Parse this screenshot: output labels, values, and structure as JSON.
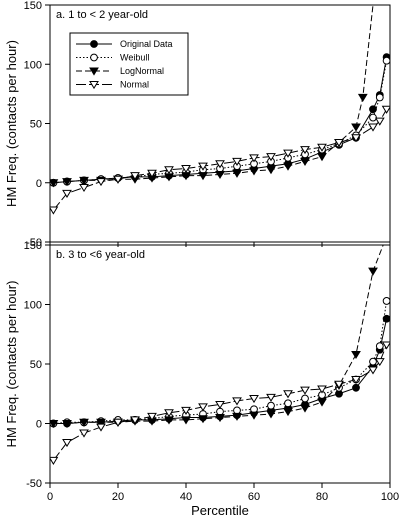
{
  "chart_data": {
    "type": "line",
    "xlabel": "Percentile",
    "ylabel": "HM Freq. (contacts per hour)",
    "xlim": [
      0,
      100
    ],
    "xticks": [
      0,
      20,
      40,
      60,
      80,
      100
    ],
    "ylim": [
      -50,
      150
    ],
    "yticks": [
      -50,
      0,
      50,
      100,
      150
    ],
    "grid": false,
    "legend_position": "top-left",
    "legend": [
      {
        "name": "Original Data",
        "line": "solid",
        "marker": "filled-circle"
      },
      {
        "name": "Weibull",
        "line": "dotted",
        "marker": "open-circle"
      },
      {
        "name": "LogNormal",
        "line": "dashed",
        "marker": "filled-down-triangle"
      },
      {
        "name": "Normal",
        "line": "long-dash",
        "marker": "open-down-triangle"
      }
    ],
    "panels": [
      {
        "label": "a. 1 to < 2 year-old",
        "series": [
          {
            "name": "Original Data",
            "x": [
              1,
              5,
              10,
              15,
              20,
              25,
              30,
              35,
              40,
              45,
              50,
              55,
              60,
              65,
              70,
              75,
              80,
              85,
              90,
              95,
              97,
              99
            ],
            "y": [
              0,
              1,
              2,
              3,
              4,
              5,
              5,
              6,
              7,
              8,
              9,
              10,
              12,
              14,
              16,
              20,
              26,
              32,
              38,
              62,
              74,
              106
            ]
          },
          {
            "name": "Weibull",
            "x": [
              1,
              5,
              10,
              15,
              20,
              25,
              30,
              35,
              40,
              45,
              50,
              55,
              60,
              65,
              70,
              75,
              80,
              85,
              90,
              95,
              97,
              99
            ],
            "y": [
              0,
              1,
              2,
              3,
              4,
              5,
              7,
              8,
              9,
              11,
              12,
              14,
              16,
              18,
              21,
              24,
              28,
              33,
              40,
              55,
              72,
              103
            ]
          },
          {
            "name": "LogNormal",
            "x": [
              1,
              5,
              10,
              15,
              20,
              25,
              30,
              35,
              40,
              45,
              50,
              55,
              60,
              65,
              70,
              75,
              80,
              85,
              90,
              92,
              95
            ],
            "y": [
              0,
              1,
              2,
              2,
              3,
              3,
              4,
              5,
              6,
              6,
              7,
              8,
              10,
              11,
              14,
              18,
              22,
              34,
              47,
              72,
              150
            ]
          },
          {
            "name": "Normal",
            "x": [
              1,
              5,
              10,
              15,
              20,
              25,
              30,
              35,
              40,
              45,
              50,
              55,
              60,
              65,
              70,
              75,
              80,
              85,
              90,
              95,
              97,
              99
            ],
            "y": [
              -23,
              -9,
              -4,
              1,
              3,
              6,
              8,
              11,
              12,
              14,
              16,
              18,
              21,
              22,
              25,
              28,
              30,
              34,
              38,
              47,
              52,
              62
            ]
          }
        ]
      },
      {
        "label": "b. 3 to <6 year-old",
        "series": [
          {
            "name": "Original Data",
            "x": [
              1,
              5,
              10,
              15,
              20,
              25,
              30,
              35,
              40,
              45,
              50,
              55,
              60,
              65,
              70,
              75,
              80,
              85,
              90,
              95,
              97,
              99
            ],
            "y": [
              0,
              0,
              1,
              1,
              2,
              3,
              3,
              4,
              5,
              5,
              6,
              7,
              9,
              11,
              13,
              16,
              21,
              25,
              30,
              48,
              62,
              88
            ]
          },
          {
            "name": "Weibull",
            "x": [
              1,
              5,
              10,
              15,
              20,
              25,
              30,
              35,
              40,
              45,
              50,
              55,
              60,
              65,
              70,
              75,
              80,
              85,
              90,
              95,
              97,
              99
            ],
            "y": [
              0,
              1,
              1,
              2,
              3,
              3,
              4,
              6,
              7,
              8,
              10,
              11,
              12,
              15,
              17,
              21,
              24,
              30,
              37,
              52,
              65,
              103
            ]
          },
          {
            "name": "LogNormal",
            "x": [
              1,
              5,
              10,
              15,
              20,
              25,
              30,
              35,
              40,
              45,
              50,
              55,
              60,
              65,
              70,
              75,
              80,
              85,
              90,
              95,
              98
            ],
            "y": [
              0,
              0,
              1,
              1,
              1,
              2,
              2,
              3,
              3,
              4,
              5,
              6,
              7,
              8,
              10,
              13,
              18,
              32,
              58,
              128,
              150
            ]
          },
          {
            "name": "Normal",
            "x": [
              1,
              5,
              10,
              15,
              20,
              25,
              30,
              35,
              40,
              45,
              50,
              55,
              60,
              65,
              70,
              75,
              80,
              85,
              90,
              95,
              97,
              99
            ],
            "y": [
              -31,
              -16,
              -8,
              -3,
              1,
              3,
              6,
              9,
              11,
              14,
              16,
              19,
              21,
              22,
              25,
              28,
              29,
              33,
              37,
              45,
              52,
              66
            ]
          }
        ]
      }
    ]
  }
}
